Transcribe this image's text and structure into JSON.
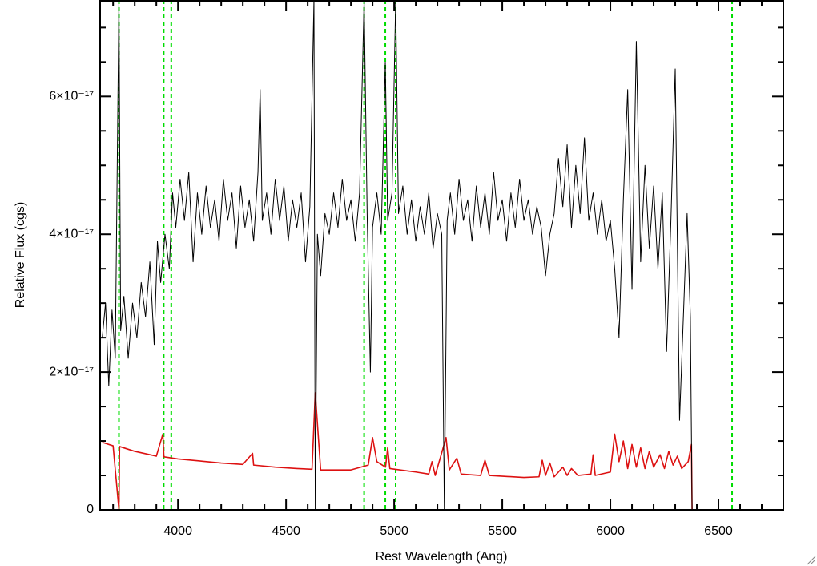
{
  "chart_data": {
    "type": "line",
    "xlabel": "Rest Wavelength (Ang)",
    "ylabel": "Relative Flux (cgs)",
    "xlim": [
      3640,
      6800
    ],
    "ylim": [
      0,
      7.4e-17
    ],
    "xticks": [
      4000,
      4500,
      5000,
      5500,
      6000,
      6500
    ],
    "xminorticks": [
      3700,
      3800,
      3900,
      4100,
      4200,
      4300,
      4400,
      4600,
      4700,
      4800,
      4900,
      5100,
      5200,
      5300,
      5400,
      5600,
      5700,
      5800,
      5900,
      6100,
      6200,
      6300,
      6400,
      6600,
      6700
    ],
    "yticks": [
      0,
      {
        "value": 2e-17,
        "label": "2×10⁻¹⁷"
      },
      {
        "value": 4e-17,
        "label": "4×10⁻¹⁷"
      },
      {
        "value": 6e-17,
        "label": "6×10⁻¹⁷"
      }
    ],
    "yminorticks": [
      5e-18,
      1e-17,
      1.5e-17,
      2.5e-17,
      3e-17,
      3.5e-17,
      4.5e-17,
      5e-17,
      5.5e-17,
      6.5e-17,
      7e-17
    ],
    "vlines": [
      3727,
      3934,
      3969,
      4861,
      4959,
      5007,
      6563
    ],
    "vline_color": "#00dd00",
    "series": [
      {
        "color": "#000000",
        "x": [
          3650,
          3665,
          3680,
          3695,
          3710,
          3727,
          3735,
          3750,
          3770,
          3790,
          3810,
          3830,
          3850,
          3870,
          3890,
          3905,
          3920,
          3940,
          3960,
          3975,
          3990,
          4010,
          4030,
          4050,
          4070,
          4090,
          4110,
          4130,
          4150,
          4170,
          4190,
          4210,
          4230,
          4250,
          4270,
          4290,
          4310,
          4330,
          4350,
          4370,
          4380,
          4390,
          4410,
          4430,
          4450,
          4470,
          4490,
          4510,
          4530,
          4550,
          4570,
          4590,
          4610,
          4629,
          4635,
          4645,
          4660,
          4680,
          4700,
          4720,
          4740,
          4760,
          4780,
          4800,
          4820,
          4840,
          4861,
          4875,
          4890,
          4900,
          4920,
          4940,
          4959,
          4970,
          4990,
          5007,
          5020,
          5040,
          5060,
          5080,
          5100,
          5120,
          5140,
          5160,
          5180,
          5200,
          5220,
          5232,
          5245,
          5260,
          5280,
          5300,
          5320,
          5340,
          5360,
          5380,
          5400,
          5420,
          5440,
          5460,
          5480,
          5500,
          5520,
          5540,
          5560,
          5580,
          5600,
          5620,
          5640,
          5660,
          5680,
          5700,
          5720,
          5740,
          5760,
          5780,
          5800,
          5820,
          5840,
          5860,
          5880,
          5900,
          5920,
          5940,
          5960,
          5980,
          6000,
          6020,
          6040,
          6060,
          6080,
          6100,
          6120,
          6140,
          6160,
          6180,
          6200,
          6220,
          6240,
          6260,
          6280,
          6300,
          6320,
          6340,
          6355,
          6370,
          6378
        ],
        "values": [
          2.5e-17,
          3e-17,
          1.8e-17,
          2.9e-17,
          2.2e-17,
          7.4e-17,
          2.6e-17,
          3.1e-17,
          2.2e-17,
          3e-17,
          2.5e-17,
          3.3e-17,
          2.8e-17,
          3.6e-17,
          2.4e-17,
          3.9e-17,
          3.3e-17,
          4e-17,
          3.5e-17,
          4.6e-17,
          4.1e-17,
          4.8e-17,
          4.2e-17,
          4.9e-17,
          3.6e-17,
          4.6e-17,
          4e-17,
          4.7e-17,
          4.1e-17,
          4.5e-17,
          3.9e-17,
          4.8e-17,
          4.2e-17,
          4.6e-17,
          3.8e-17,
          4.7e-17,
          4.1e-17,
          4.5e-17,
          3.9e-17,
          4.9e-17,
          6.1e-17,
          4.2e-17,
          4.6e-17,
          4e-17,
          4.8e-17,
          4.2e-17,
          4.7e-17,
          3.9e-17,
          4.5e-17,
          4.1e-17,
          4.6e-17,
          3.6e-17,
          4.4e-17,
          7.4e-17,
          0,
          4e-17,
          3.4e-17,
          4.3e-17,
          4e-17,
          4.6e-17,
          4.1e-17,
          4.8e-17,
          4.2e-17,
          4.5e-17,
          3.9e-17,
          4.6e-17,
          7.4e-17,
          4.3e-17,
          2e-17,
          4.1e-17,
          4.6e-17,
          4e-17,
          6.5e-17,
          4.2e-17,
          4.6e-17,
          7.4e-17,
          4.3e-17,
          4.7e-17,
          4e-17,
          4.5e-17,
          3.9e-17,
          4.4e-17,
          4e-17,
          4.6e-17,
          3.8e-17,
          4.3e-17,
          4e-17,
          0,
          4.2e-17,
          4.6e-17,
          4e-17,
          4.8e-17,
          4.2e-17,
          4.5e-17,
          3.9e-17,
          4.7e-17,
          4.1e-17,
          4.6e-17,
          4e-17,
          4.9e-17,
          4.2e-17,
          4.5e-17,
          3.9e-17,
          4.6e-17,
          4.1e-17,
          4.8e-17,
          4.2e-17,
          4.5e-17,
          4e-17,
          4.4e-17,
          4.1e-17,
          3.4e-17,
          4e-17,
          4.3e-17,
          5.1e-17,
          4.4e-17,
          5.3e-17,
          4.1e-17,
          5e-17,
          4.3e-17,
          5.4e-17,
          4.2e-17,
          4.6e-17,
          4e-17,
          4.5e-17,
          3.9e-17,
          4.2e-17,
          3.5e-17,
          2.5e-17,
          4.5e-17,
          6.1e-17,
          3.2e-17,
          6.8e-17,
          3.6e-17,
          5e-17,
          3.8e-17,
          4.7e-17,
          3.5e-17,
          4.6e-17,
          2.3e-17,
          4.2e-17,
          6.4e-17,
          1.3e-17,
          3e-17,
          4.3e-17,
          2.8e-17,
          0
        ]
      },
      {
        "color": "#dd1111",
        "x": [
          3650,
          3700,
          3727,
          3730,
          3800,
          3900,
          3930,
          3935,
          4000,
          4100,
          4200,
          4300,
          4345,
          4350,
          4450,
          4550,
          4620,
          4635,
          4660,
          4800,
          4880,
          4900,
          4920,
          4960,
          4970,
          4980,
          5100,
          5160,
          5175,
          5190,
          5240,
          5255,
          5290,
          5310,
          5400,
          5420,
          5440,
          5600,
          5670,
          5685,
          5700,
          5720,
          5740,
          5780,
          5800,
          5820,
          5850,
          5910,
          5920,
          5930,
          6000,
          6020,
          6040,
          6060,
          6080,
          6100,
          6120,
          6140,
          6160,
          6180,
          6200,
          6230,
          6250,
          6270,
          6290,
          6310,
          6330,
          6360,
          6375,
          6378,
          6800
        ],
        "values": [
          9.8e-18,
          9.3e-18,
          0,
          9.2e-18,
          8.5e-18,
          7.8e-18,
          1.1e-17,
          7.7e-18,
          7.4e-18,
          7.1e-18,
          6.8e-18,
          6.6e-18,
          8.2e-18,
          6.5e-18,
          6.2e-18,
          6e-18,
          5.9e-18,
          1.7e-17,
          5.8e-18,
          5.8e-18,
          6.5e-18,
          1.05e-17,
          7e-18,
          6.2e-18,
          9e-18,
          6e-18,
          5.5e-18,
          5.2e-18,
          7e-18,
          5e-18,
          1.05e-17,
          5.8e-18,
          7.5e-18,
          5.2e-18,
          5e-18,
          7.2e-18,
          5e-18,
          4.7e-18,
          4.8e-18,
          7.2e-18,
          5e-18,
          6.8e-18,
          4.8e-18,
          6.2e-18,
          5e-18,
          6e-18,
          5e-18,
          5.2e-18,
          8e-18,
          5e-18,
          5.5e-18,
          1.1e-17,
          7e-18,
          1e-17,
          6e-18,
          9.5e-18,
          6.2e-18,
          9e-18,
          6e-18,
          8.5e-18,
          6.2e-18,
          8e-18,
          6e-18,
          8.5e-18,
          6.5e-18,
          7.8e-18,
          6e-18,
          7e-18,
          9.5e-18,
          0,
          0
        ]
      }
    ]
  }
}
